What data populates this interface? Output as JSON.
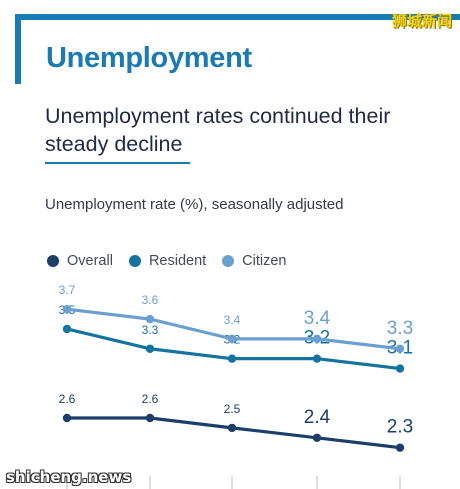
{
  "header": {
    "section_title": "Unemployment",
    "headline": "Unemployment rates continued their steady decline",
    "subtitle": "Unemployment rate (%), seasonally adjusted"
  },
  "watermarks": {
    "top": "狮城新闻",
    "bottom": "shicheng.news"
  },
  "colors": {
    "accent": "#1a7ab3",
    "overall": "#1b3f68",
    "resident": "#14739f",
    "citizen": "#6b9fd0"
  },
  "chart_data": {
    "type": "line",
    "x": [
      "",
      "",
      "",
      "",
      ""
    ],
    "series": [
      {
        "name": "Overall",
        "values": [
          2.6,
          2.6,
          2.5,
          2.4,
          2.3
        ],
        "labels": [
          "2.6",
          "2.6",
          "2.5",
          "2.4",
          "2.3"
        ]
      },
      {
        "name": "Resident",
        "values": [
          3.5,
          3.3,
          3.2,
          3.2,
          3.1
        ],
        "labels": [
          "3.5",
          "3.3",
          "3.2",
          "3.2",
          "3.1"
        ]
      },
      {
        "name": "Citizen",
        "values": [
          3.7,
          3.6,
          3.4,
          3.4,
          3.3
        ],
        "labels": [
          "3.7",
          "3.6",
          "3.4",
          "3.4",
          "3.3"
        ]
      }
    ],
    "title": "",
    "xlabel": "",
    "ylabel": "Unemployment rate (%), seasonally adjusted",
    "legend_position": "top-left",
    "grid": false
  }
}
